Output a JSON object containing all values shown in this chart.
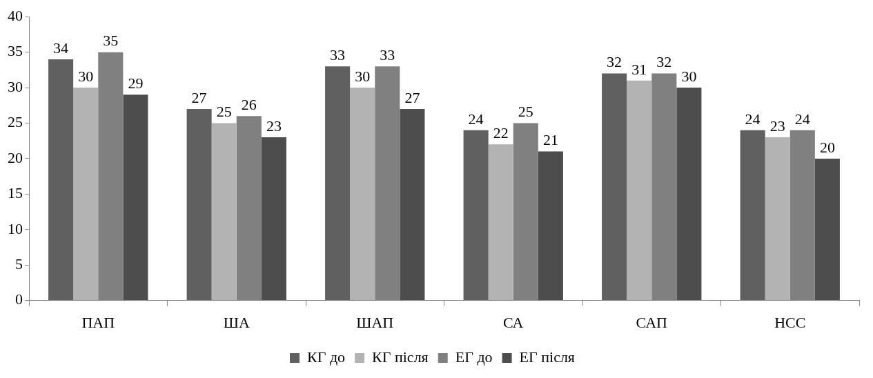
{
  "chart_data": {
    "type": "bar",
    "categories": [
      "ПАП",
      "ША",
      "ШАП",
      "СА",
      "САП",
      "НСС"
    ],
    "series": [
      {
        "name": "КГ до",
        "color": "#606060",
        "values": [
          34,
          27,
          33,
          24,
          32,
          24
        ]
      },
      {
        "name": "КГ після",
        "color": "#b3b3b3",
        "values": [
          30,
          25,
          30,
          22,
          31,
          23
        ]
      },
      {
        "name": "ЕГ до",
        "color": "#808080",
        "values": [
          35,
          26,
          33,
          25,
          32,
          24
        ]
      },
      {
        "name": "ЕГ після",
        "color": "#4d4d4d",
        "values": [
          29,
          23,
          27,
          21,
          30,
          20
        ]
      }
    ],
    "ylim": [
      0,
      40
    ],
    "yticks": [
      0,
      5,
      10,
      15,
      20,
      25,
      30,
      35,
      40
    ],
    "grid": false,
    "legend": "bottom",
    "data_labels": true
  }
}
